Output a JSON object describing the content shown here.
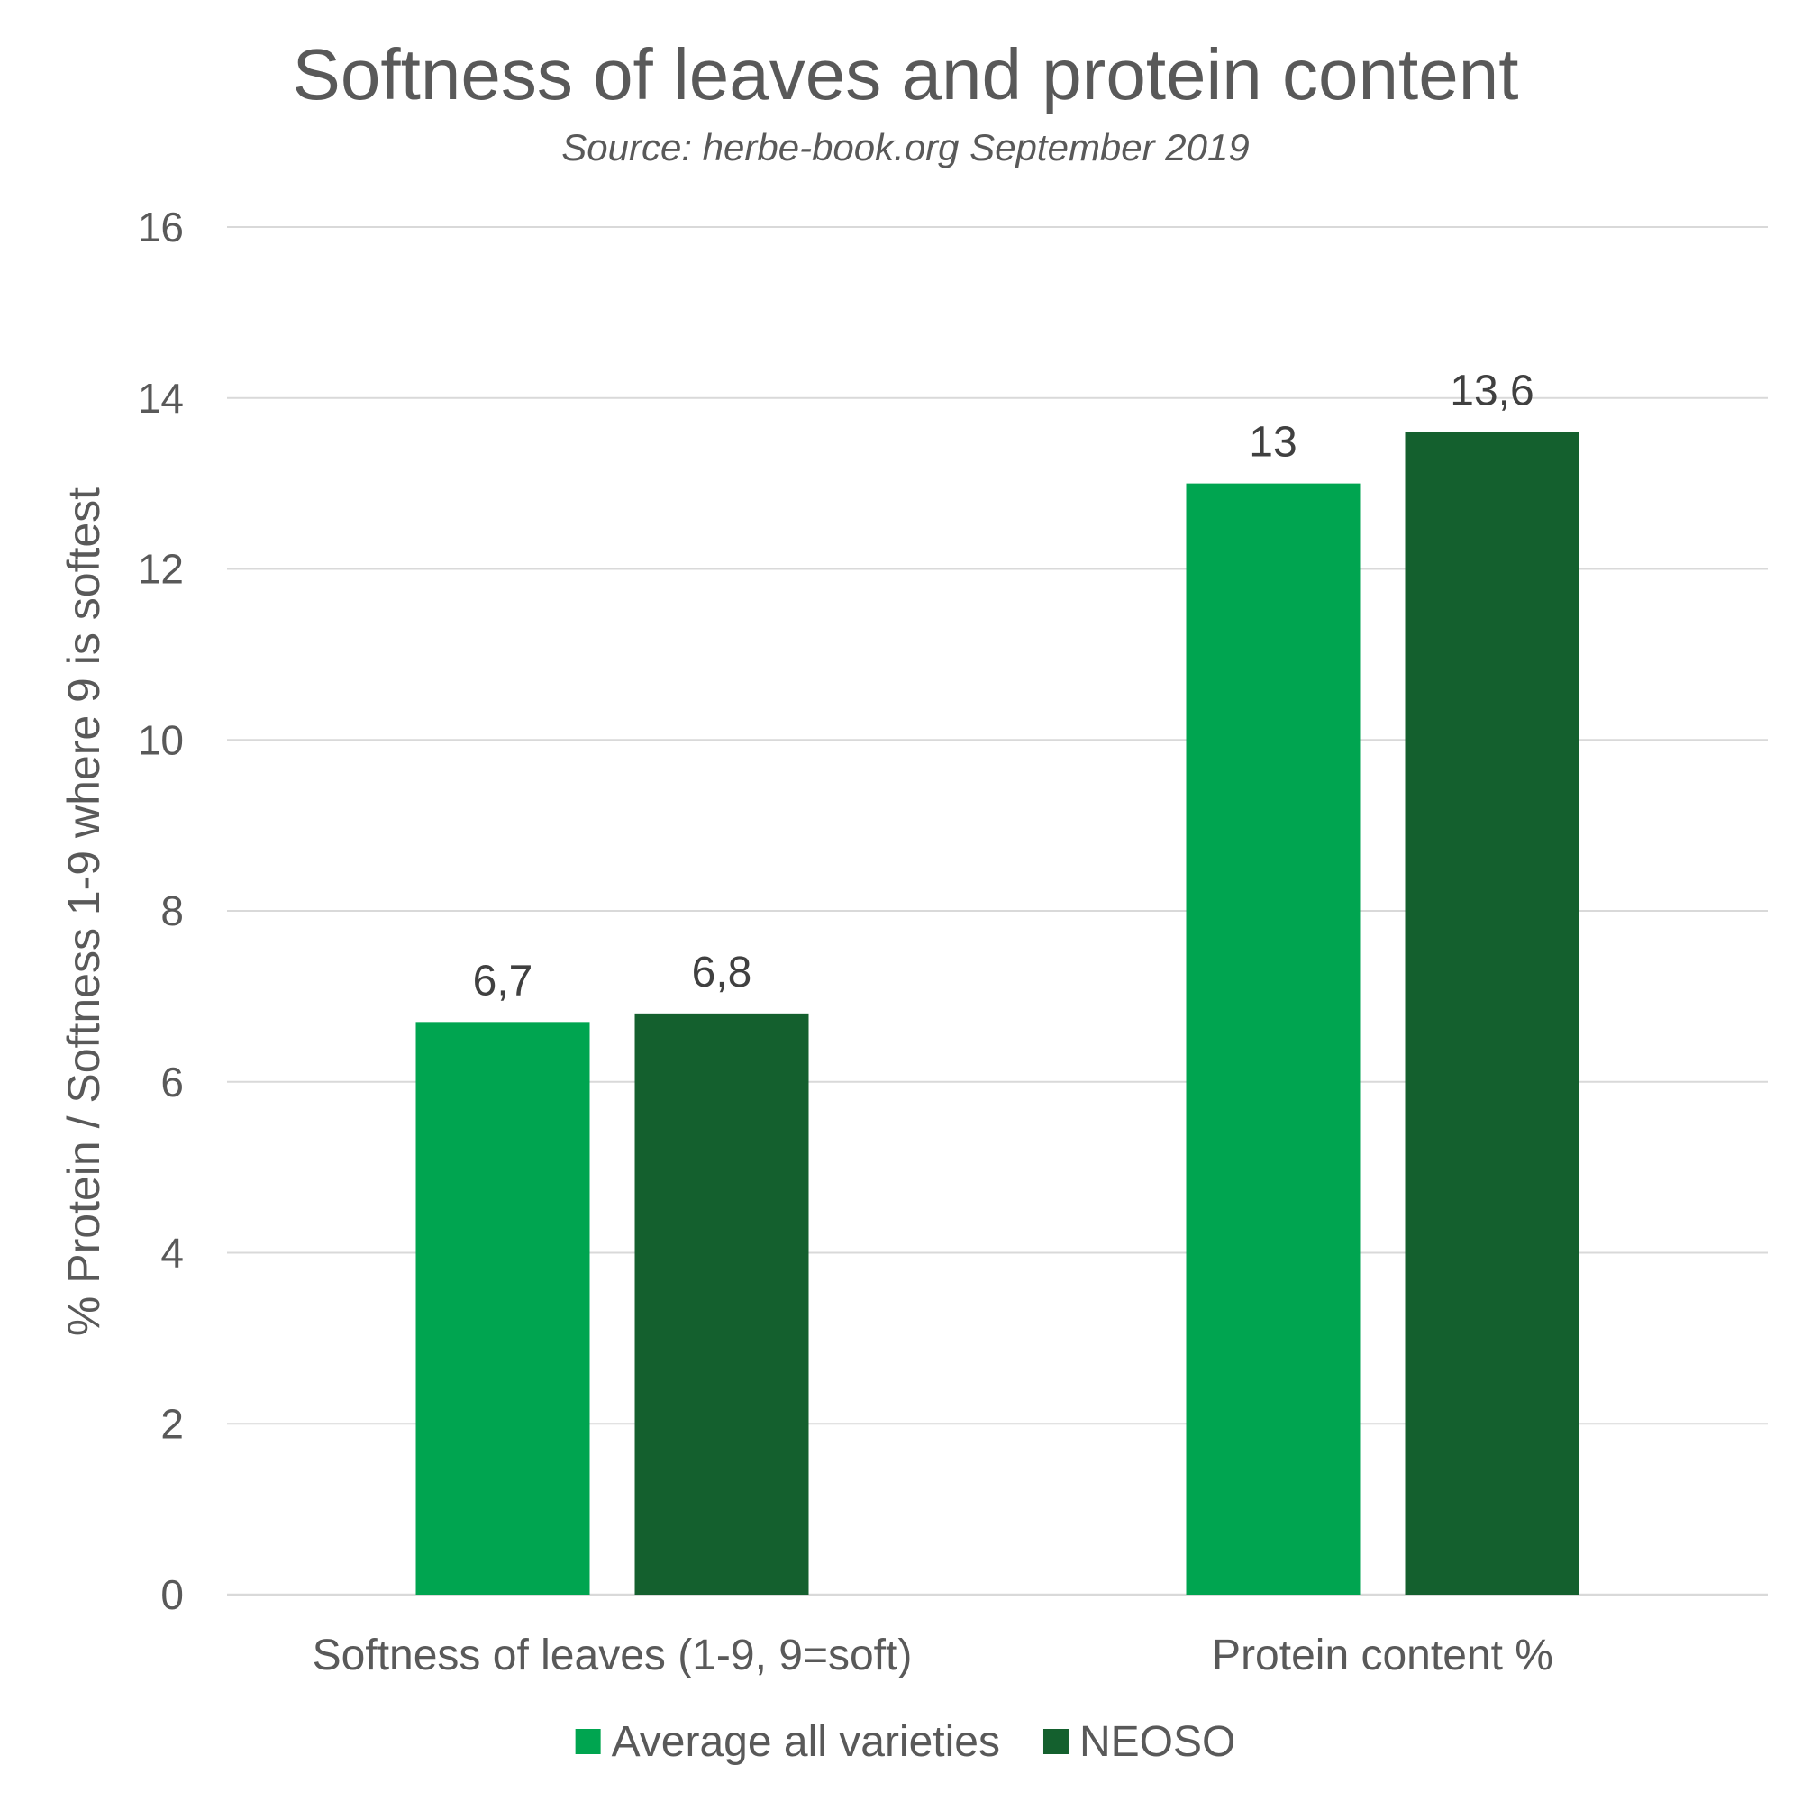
{
  "chart_data": {
    "type": "bar",
    "title": "Softness of leaves and protein content",
    "subtitle": "Source: herbe-book.org September 2019",
    "xlabel": "",
    "ylabel": "% Protein / Softness 1-9 where 9 is softest",
    "ylim": [
      0,
      16
    ],
    "yticks": [
      0,
      2,
      4,
      6,
      8,
      10,
      12,
      14,
      16
    ],
    "categories": [
      "Softness of leaves (1-9, 9=soft)",
      "Protein content %"
    ],
    "series": [
      {
        "name": "Average all varieties",
        "color": "#00a550",
        "values": [
          6.7,
          13
        ],
        "labels": [
          "6,7",
          "13"
        ]
      },
      {
        "name": "NEOSO",
        "color": "#14602e",
        "values": [
          6.8,
          13.6
        ],
        "labels": [
          "6,8",
          "13,6"
        ]
      }
    ],
    "grid": true,
    "legend": "bottom-center"
  }
}
